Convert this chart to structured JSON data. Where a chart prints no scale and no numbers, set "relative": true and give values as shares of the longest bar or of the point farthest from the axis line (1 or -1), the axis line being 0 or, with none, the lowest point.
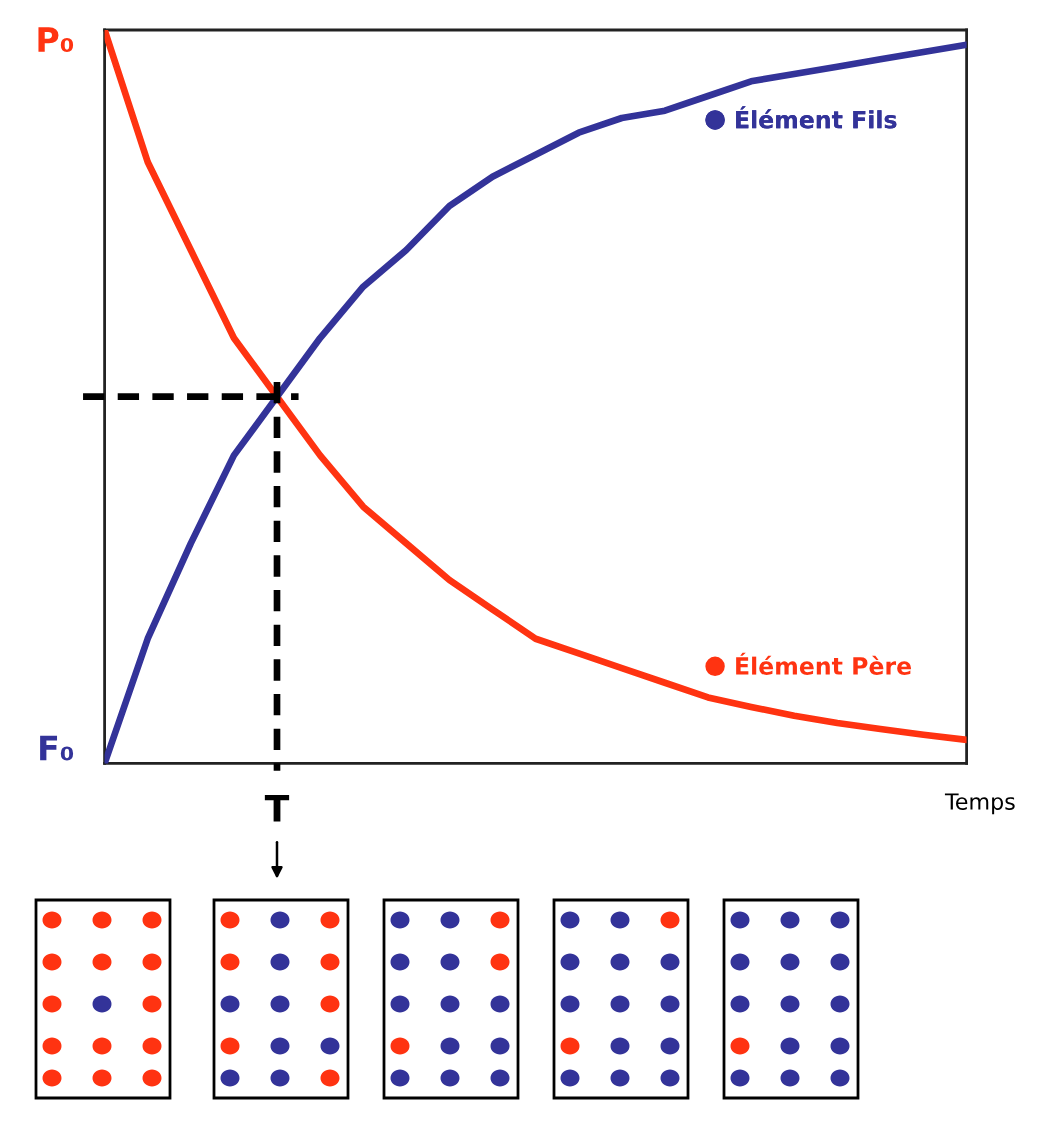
{
  "chart_data": {
    "type": "line",
    "relative": true,
    "categories": [
      null,
      null,
      null,
      null,
      null,
      null,
      null,
      null,
      null,
      null,
      null,
      null,
      null,
      null,
      null,
      null,
      null,
      null,
      null,
      null,
      null
    ],
    "series": [
      {
        "name": "Élément Père",
        "color": "#ff3311",
        "values": [
          1.0,
          0.82,
          0.7,
          0.58,
          0.5,
          0.42,
          0.35,
          0.3,
          0.25,
          0.21,
          0.17,
          0.15,
          0.13,
          0.11,
          0.09,
          0.077,
          0.065,
          0.055,
          0.047,
          0.039,
          0.032
        ]
      },
      {
        "name": "Élément Fils",
        "color": "#333399",
        "values": [
          0,
          0.17,
          0.3,
          0.42,
          0.5,
          0.58,
          0.65,
          0.7,
          0.76,
          0.8,
          0.83,
          0.86,
          0.88,
          0.89,
          0.91,
          0.93,
          0.94,
          0.95,
          0.96,
          0.97,
          0.98
        ]
      }
    ],
    "xlabel": "Temps",
    "annotations": [
      "P₀",
      "F₀"
    ],
    "ref_lines": [
      {
        "axis": "y",
        "value": 0.5,
        "label": "T",
        "color": "#000000",
        "line_style": "dashed"
      }
    ],
    "legend": "right",
    "line_style": "solid"
  }
}
